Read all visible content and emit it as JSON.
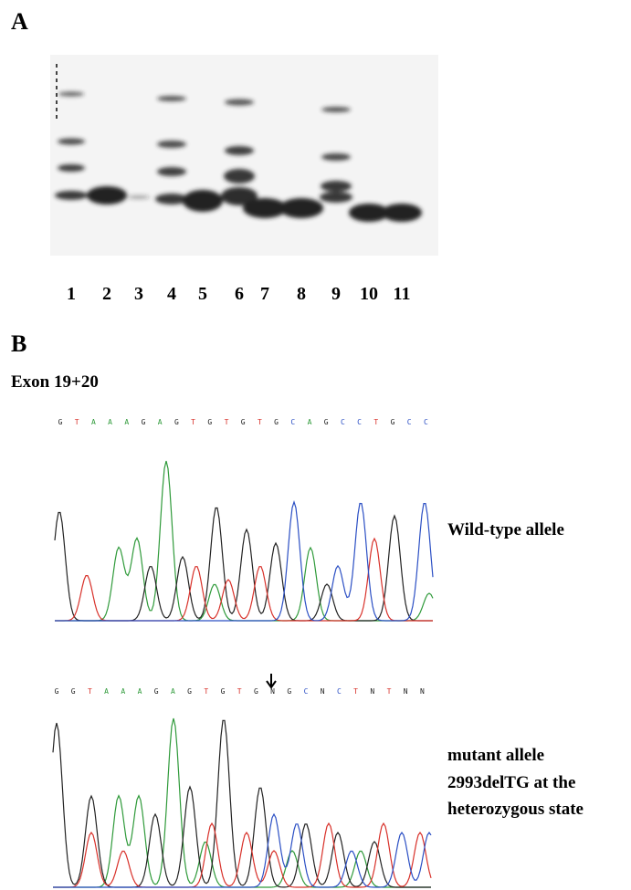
{
  "panel_a": {
    "label": "A",
    "lanes": [
      1,
      2,
      3,
      4,
      5,
      6,
      7,
      8,
      9,
      10,
      11
    ]
  },
  "panel_b": {
    "label": "B",
    "exon": "Exon 19+20",
    "base_colors": {
      "G": "#222222",
      "T": "#d8312a",
      "A": "#2f9a3a",
      "C": "#2b4fc4",
      "N": "#222222"
    },
    "wild_type": {
      "sequence": [
        "G",
        "T",
        "A",
        "A",
        "A",
        "G",
        "A",
        "G",
        "T",
        "G",
        "T",
        "G",
        "T",
        "G",
        "C",
        "A",
        "G",
        "C",
        "C",
        "T",
        "G",
        "C",
        "C"
      ],
      "label": "Wild-type allele"
    },
    "mutant": {
      "sequence": [
        "G",
        "G",
        "T",
        "A",
        "A",
        "A",
        "G",
        "A",
        "G",
        "T",
        "G",
        "T",
        "G",
        "N",
        "G",
        "C",
        "N",
        "C",
        "T",
        "N",
        "T",
        "N",
        "N"
      ],
      "label_lines": [
        "mutant allele",
        "2993delTG at the",
        "heterozygous state"
      ]
    }
  }
}
